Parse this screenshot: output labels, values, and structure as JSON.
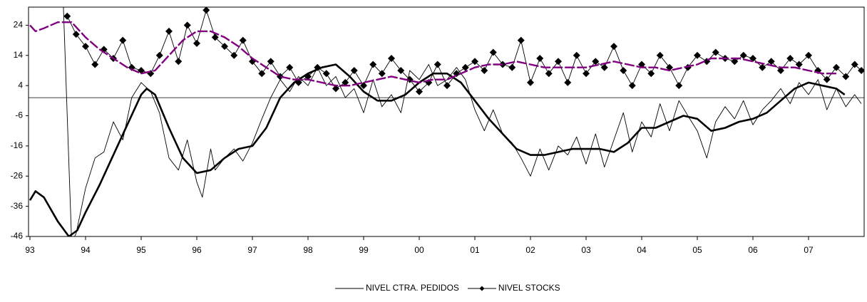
{
  "chart_data": {
    "type": "line",
    "xlim": [
      1993,
      2008
    ],
    "ylim": [
      -46,
      30
    ],
    "xticks": [
      {
        "value": 1993,
        "label": "93"
      },
      {
        "value": 1994,
        "label": "94"
      },
      {
        "value": 1995,
        "label": "95"
      },
      {
        "value": 1996,
        "label": "96"
      },
      {
        "value": 1997,
        "label": "97"
      },
      {
        "value": 1998,
        "label": "98"
      },
      {
        "value": 1999,
        "label": "99"
      },
      {
        "value": 2000,
        "label": "00"
      },
      {
        "value": 2001,
        "label": "01"
      },
      {
        "value": 2002,
        "label": "02"
      },
      {
        "value": 2003,
        "label": "03"
      },
      {
        "value": 2004,
        "label": "04"
      },
      {
        "value": 2005,
        "label": "05"
      },
      {
        "value": 2006,
        "label": "06"
      },
      {
        "value": 2007,
        "label": "07"
      }
    ],
    "yticks": [
      -46,
      -36,
      -26,
      -16,
      -6,
      4,
      14,
      24
    ],
    "hline": 0,
    "series": [
      {
        "name": "NIVEL CTRA. PEDIDOS",
        "color": "#000000",
        "style": "line",
        "x": [
          1993.6,
          1993.75,
          1993.83,
          1994.0,
          1994.17,
          1994.33,
          1994.5,
          1994.67,
          1994.83,
          1995.0,
          1995.17,
          1995.33,
          1995.5,
          1995.67,
          1995.83,
          1996.0,
          1996.1,
          1996.25,
          1996.33,
          1996.5,
          1996.67,
          1996.83,
          1997.0,
          1997.17,
          1997.33,
          1997.5,
          1997.67,
          1997.83,
          1998.0,
          1998.17,
          1998.33,
          1998.5,
          1998.67,
          1998.83,
          1999.0,
          1999.17,
          1999.33,
          1999.5,
          1999.67,
          1999.83,
          2000.0,
          2000.17,
          2000.33,
          2000.5,
          2000.67,
          2000.83,
          2001.0,
          2001.17,
          2001.33,
          2001.5,
          2001.67,
          2001.83,
          2002.0,
          2002.17,
          2002.33,
          2002.5,
          2002.67,
          2002.83,
          2003.0,
          2003.17,
          2003.33,
          2003.5,
          2003.67,
          2003.83,
          2004.0,
          2004.17,
          2004.33,
          2004.5,
          2004.67,
          2004.83,
          2005.0,
          2005.17,
          2005.33,
          2005.5,
          2005.67,
          2005.83,
          2006.0,
          2006.17,
          2006.33,
          2006.5,
          2006.67,
          2006.83,
          2007.0,
          2007.17,
          2007.33,
          2007.5,
          2007.67,
          2007.83,
          2007.95
        ],
        "values": [
          31,
          -48,
          -45,
          -30,
          -20,
          -18,
          -8,
          -14,
          0,
          5,
          2,
          -5,
          -20,
          -24,
          -14,
          -28,
          -33,
          -17,
          -24,
          -20,
          -17,
          -21,
          -15,
          -7,
          0,
          6,
          2,
          7,
          4,
          10,
          4,
          7,
          0,
          3,
          -5,
          6,
          -3,
          1,
          -5,
          9,
          6,
          11,
          4,
          6,
          10,
          6,
          -4,
          -11,
          -4,
          -12,
          -15,
          -20,
          -26,
          -17,
          -24,
          -16,
          -19,
          -13,
          -22,
          -12,
          -23,
          -14,
          -5,
          -18,
          -8,
          -13,
          -2,
          -11,
          -1,
          -6,
          -11,
          -20,
          -8,
          -3,
          -7,
          -1,
          -9,
          -4,
          -1,
          3,
          -2,
          5,
          1,
          6,
          -4,
          3,
          -3,
          1,
          -2
        ]
      },
      {
        "color": "#000000",
        "style": "trend",
        "x": [
          1993.0,
          1993.1,
          1993.25,
          1993.5,
          1993.7,
          1993.85,
          1994.0,
          1994.25,
          1994.5,
          1994.75,
          1995.0,
          1995.1,
          1995.25,
          1995.5,
          1995.75,
          1996.0,
          1996.25,
          1996.5,
          1996.75,
          1997.0,
          1997.25,
          1997.5,
          1997.75,
          1998.0,
          1998.25,
          1998.5,
          1998.75,
          1999.0,
          1999.25,
          1999.5,
          1999.75,
          2000.0,
          2000.25,
          2000.5,
          2000.75,
          2001.0,
          2001.25,
          2001.5,
          2001.75,
          2002.0,
          2002.25,
          2002.5,
          2002.75,
          2003.0,
          2003.25,
          2003.5,
          2003.75,
          2004.0,
          2004.25,
          2004.5,
          2004.75,
          2005.0,
          2005.25,
          2005.5,
          2005.75,
          2006.0,
          2006.25,
          2006.5,
          2006.75,
          2007.0,
          2007.25,
          2007.5,
          2007.65
        ],
        "values": [
          -34,
          -31,
          -33,
          -41,
          -46,
          -44,
          -38,
          -29,
          -19,
          -9,
          1,
          3,
          1,
          -10,
          -20,
          -25,
          -24,
          -20,
          -17,
          -16,
          -10,
          0,
          5,
          8,
          10,
          11,
          7,
          2,
          -1,
          -1,
          1,
          5,
          8,
          8,
          5,
          -1,
          -7,
          -12,
          -17,
          -19,
          -19,
          -18,
          -17,
          -17,
          -17,
          -18,
          -15,
          -10,
          -10,
          -8,
          -6,
          -7,
          -11,
          -10,
          -8,
          -7,
          -5,
          -1,
          3,
          5,
          4,
          3,
          1
        ]
      },
      {
        "name": "NIVEL STOCKS",
        "color": "#000000",
        "style": "markers",
        "x": [
          1993.67,
          1993.83,
          1994.0,
          1994.17,
          1994.33,
          1994.5,
          1994.67,
          1994.83,
          1995.0,
          1995.17,
          1995.33,
          1995.5,
          1995.67,
          1995.83,
          1996.0,
          1996.17,
          1996.33,
          1996.5,
          1996.67,
          1996.83,
          1997.0,
          1997.17,
          1997.33,
          1997.5,
          1997.67,
          1997.83,
          1998.0,
          1998.17,
          1998.33,
          1998.5,
          1998.67,
          1998.83,
          1999.0,
          1999.17,
          1999.33,
          1999.5,
          1999.67,
          1999.83,
          2000.0,
          2000.17,
          2000.33,
          2000.5,
          2000.67,
          2000.83,
          2001.0,
          2001.17,
          2001.33,
          2001.5,
          2001.67,
          2001.83,
          2002.0,
          2002.17,
          2002.33,
          2002.5,
          2002.67,
          2002.83,
          2003.0,
          2003.17,
          2003.33,
          2003.5,
          2003.67,
          2003.83,
          2004.0,
          2004.17,
          2004.33,
          2004.5,
          2004.67,
          2004.83,
          2005.0,
          2005.17,
          2005.33,
          2005.5,
          2005.67,
          2005.83,
          2006.0,
          2006.17,
          2006.33,
          2006.5,
          2006.67,
          2006.83,
          2007.0,
          2007.17,
          2007.33,
          2007.5,
          2007.67,
          2007.83,
          2007.95
        ],
        "values": [
          27,
          21,
          17,
          11,
          16,
          13,
          19,
          10,
          9,
          8,
          14,
          22,
          12,
          24,
          18,
          29,
          20,
          17,
          14,
          19,
          12,
          8,
          12,
          7,
          10,
          5,
          7,
          10,
          8,
          3,
          5,
          9,
          4,
          11,
          8,
          13,
          9,
          6,
          2,
          5,
          11,
          4,
          8,
          10,
          12,
          9,
          15,
          11,
          10,
          19,
          5,
          13,
          8,
          12,
          5,
          14,
          8,
          12,
          10,
          17,
          9,
          4,
          11,
          8,
          14,
          10,
          4,
          10,
          14,
          12,
          15,
          13,
          12,
          14,
          13,
          10,
          12,
          9,
          13,
          11,
          14,
          9,
          6,
          10,
          7,
          11,
          9
        ]
      },
      {
        "color": "#800080",
        "style": "dashed-trend",
        "x": [
          1993.0,
          1993.1,
          1993.25,
          1993.5,
          1993.75,
          1994.0,
          1994.25,
          1994.5,
          1994.75,
          1995.0,
          1995.25,
          1995.5,
          1995.75,
          1996.0,
          1996.25,
          1996.5,
          1996.75,
          1997.0,
          1997.25,
          1997.5,
          1997.75,
          1998.0,
          1998.25,
          1998.5,
          1998.75,
          1999.0,
          1999.25,
          1999.5,
          1999.75,
          2000.0,
          2000.25,
          2000.5,
          2000.75,
          2001.0,
          2001.25,
          2001.5,
          2001.75,
          2002.0,
          2002.25,
          2002.5,
          2002.75,
          2003.0,
          2003.25,
          2003.5,
          2003.75,
          2004.0,
          2004.25,
          2004.5,
          2004.75,
          2005.0,
          2005.25,
          2005.5,
          2005.75,
          2006.0,
          2006.25,
          2006.5,
          2006.75,
          2007.0,
          2007.25,
          2007.5
        ],
        "values": [
          24,
          22,
          23,
          25,
          25,
          20,
          16,
          13,
          10,
          8,
          9,
          14,
          19,
          22,
          22,
          20,
          17,
          13,
          10,
          7,
          6,
          6,
          5,
          4,
          4,
          5,
          6,
          7,
          6,
          5,
          6,
          6,
          8,
          10,
          11,
          11,
          12,
          11,
          10,
          10,
          10,
          10,
          11,
          12,
          11,
          10,
          10,
          9,
          10,
          11,
          13,
          13,
          13,
          12,
          11,
          10,
          10,
          9,
          8,
          8
        ]
      }
    ]
  }
}
